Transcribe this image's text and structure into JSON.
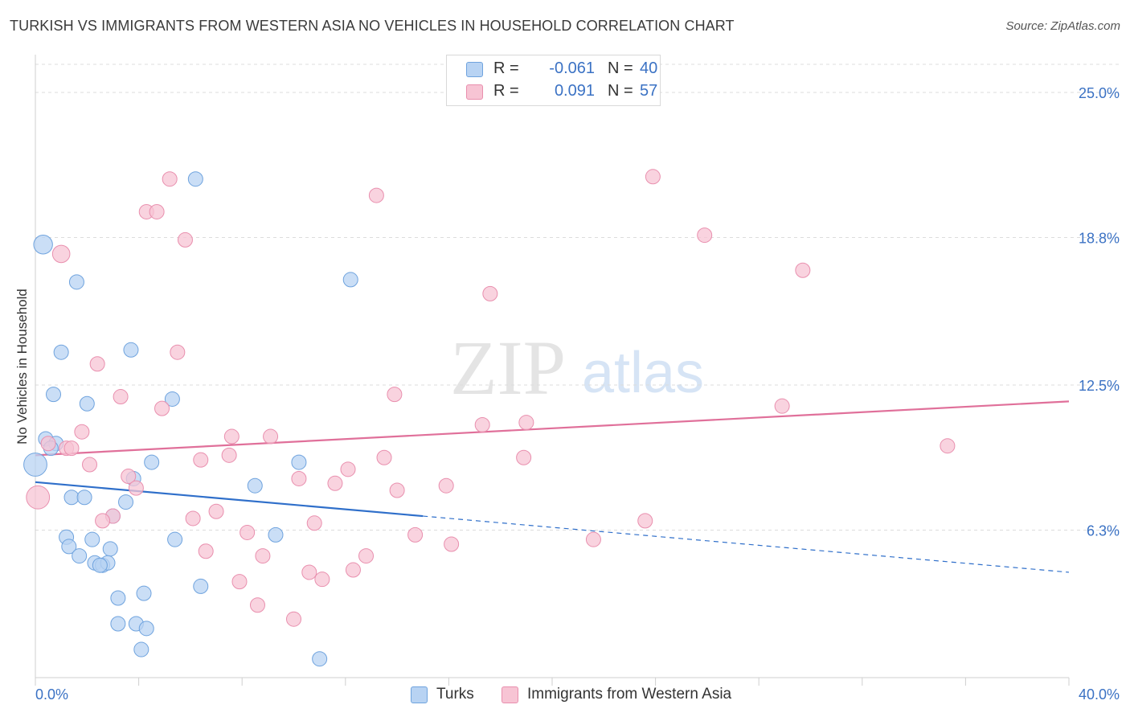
{
  "title": "TURKISH VS IMMIGRANTS FROM WESTERN ASIA NO VEHICLES IN HOUSEHOLD CORRELATION CHART",
  "source": "Source: ZipAtlas.com",
  "watermark": {
    "zip": "ZIP",
    "atlas": "atlas"
  },
  "colors": {
    "blue_fill": "#b8d3f3",
    "blue_stroke": "#6fa3de",
    "blue_line": "#2f6fca",
    "pink_fill": "#f7c4d4",
    "pink_stroke": "#e98fae",
    "pink_line": "#e0709a",
    "tick_text": "#3b72c4",
    "grid": "#dcdcdc"
  },
  "stats": [
    {
      "r_label": "R = ",
      "r_value": "-0.061",
      "n_label": "N = ",
      "n_value": "40",
      "color": "blue"
    },
    {
      "r_label": "R = ",
      "r_value": "0.091",
      "n_label": "N = ",
      "n_value": "57",
      "color": "pink"
    }
  ],
  "legend": [
    {
      "label": "Turks",
      "color": "blue"
    },
    {
      "label": "Immigrants from Western Asia",
      "color": "pink"
    }
  ],
  "chart_data": {
    "type": "scatter",
    "title": "TURKISH VS IMMIGRANTS FROM WESTERN ASIA NO VEHICLES IN HOUSEHOLD CORRELATION CHART",
    "xlabel": "",
    "ylabel": "No Vehicles in Household",
    "xlim": [
      0,
      40
    ],
    "ylim": [
      0,
      26.2
    ],
    "x_tick_labels": [
      "0.0%",
      "40.0%"
    ],
    "y_ticks": [
      6.3,
      12.5,
      18.8,
      25.0
    ],
    "y_tick_labels": [
      "6.3%",
      "12.5%",
      "18.8%",
      "25.0%"
    ],
    "grid": "horizontal dashed",
    "legend_position": "bottom-center",
    "series": [
      {
        "name": "Turks",
        "color": "blue",
        "trend": {
          "x": [
            0,
            15
          ],
          "y": [
            8.35,
            6.9
          ],
          "dashed_to": [
            40,
            4.5
          ]
        },
        "points": [
          {
            "x": 0.3,
            "y": 18.5,
            "s": 1.3
          },
          {
            "x": 1.6,
            "y": 16.9,
            "s": 1
          },
          {
            "x": 12.2,
            "y": 17.0,
            "s": 1
          },
          {
            "x": 6.2,
            "y": 21.3,
            "s": 1
          },
          {
            "x": 1.0,
            "y": 13.9,
            "s": 1
          },
          {
            "x": 3.7,
            "y": 14.0,
            "s": 1
          },
          {
            "x": 0.7,
            "y": 12.1,
            "s": 1
          },
          {
            "x": 2.0,
            "y": 11.7,
            "s": 1
          },
          {
            "x": 5.3,
            "y": 11.9,
            "s": 1
          },
          {
            "x": 0.4,
            "y": 10.2,
            "s": 1
          },
          {
            "x": 0.8,
            "y": 10.0,
            "s": 1
          },
          {
            "x": 0.6,
            "y": 9.8,
            "s": 1
          },
          {
            "x": 0.0,
            "y": 9.1,
            "s": 1.6
          },
          {
            "x": 4.5,
            "y": 9.2,
            "s": 1
          },
          {
            "x": 10.2,
            "y": 9.2,
            "s": 1
          },
          {
            "x": 3.8,
            "y": 8.5,
            "s": 1
          },
          {
            "x": 8.5,
            "y": 8.2,
            "s": 1
          },
          {
            "x": 1.4,
            "y": 7.7,
            "s": 1
          },
          {
            "x": 1.9,
            "y": 7.7,
            "s": 1
          },
          {
            "x": 3.5,
            "y": 7.5,
            "s": 1
          },
          {
            "x": 3.0,
            "y": 6.9,
            "s": 1
          },
          {
            "x": 1.2,
            "y": 6.0,
            "s": 1
          },
          {
            "x": 2.2,
            "y": 5.9,
            "s": 1
          },
          {
            "x": 5.4,
            "y": 5.9,
            "s": 1
          },
          {
            "x": 9.3,
            "y": 6.1,
            "s": 1
          },
          {
            "x": 1.3,
            "y": 5.6,
            "s": 1
          },
          {
            "x": 2.9,
            "y": 5.5,
            "s": 1
          },
          {
            "x": 1.7,
            "y": 5.2,
            "s": 1
          },
          {
            "x": 2.3,
            "y": 4.9,
            "s": 1
          },
          {
            "x": 2.6,
            "y": 4.8,
            "s": 1
          },
          {
            "x": 2.8,
            "y": 4.9,
            "s": 1
          },
          {
            "x": 6.4,
            "y": 3.9,
            "s": 1
          },
          {
            "x": 3.2,
            "y": 3.4,
            "s": 1
          },
          {
            "x": 4.2,
            "y": 3.6,
            "s": 1
          },
          {
            "x": 3.2,
            "y": 2.3,
            "s": 1
          },
          {
            "x": 3.9,
            "y": 2.3,
            "s": 1
          },
          {
            "x": 4.3,
            "y": 2.1,
            "s": 1
          },
          {
            "x": 4.1,
            "y": 1.2,
            "s": 1
          },
          {
            "x": 11.0,
            "y": 0.8,
            "s": 1
          },
          {
            "x": 2.5,
            "y": 4.8,
            "s": 1
          }
        ]
      },
      {
        "name": "Immigrants from Western Asia",
        "color": "pink",
        "trend": {
          "x": [
            0,
            40
          ],
          "y": [
            9.5,
            11.8
          ]
        },
        "points": [
          {
            "x": 5.2,
            "y": 21.3,
            "s": 1
          },
          {
            "x": 4.3,
            "y": 19.9,
            "s": 1
          },
          {
            "x": 4.7,
            "y": 19.9,
            "s": 1
          },
          {
            "x": 13.2,
            "y": 20.6,
            "s": 1
          },
          {
            "x": 23.9,
            "y": 21.4,
            "s": 1
          },
          {
            "x": 1.0,
            "y": 18.1,
            "s": 1.2
          },
          {
            "x": 5.8,
            "y": 18.7,
            "s": 1
          },
          {
            "x": 25.9,
            "y": 18.9,
            "s": 1
          },
          {
            "x": 29.7,
            "y": 17.4,
            "s": 1
          },
          {
            "x": 17.6,
            "y": 16.4,
            "s": 1
          },
          {
            "x": 5.5,
            "y": 13.9,
            "s": 1
          },
          {
            "x": 2.4,
            "y": 13.4,
            "s": 1
          },
          {
            "x": 3.3,
            "y": 12.0,
            "s": 1
          },
          {
            "x": 13.9,
            "y": 12.1,
            "s": 1
          },
          {
            "x": 4.9,
            "y": 11.5,
            "s": 1
          },
          {
            "x": 28.9,
            "y": 11.6,
            "s": 1
          },
          {
            "x": 17.3,
            "y": 10.8,
            "s": 1
          },
          {
            "x": 19.0,
            "y": 10.9,
            "s": 1
          },
          {
            "x": 1.8,
            "y": 10.5,
            "s": 1
          },
          {
            "x": 7.6,
            "y": 10.3,
            "s": 1
          },
          {
            "x": 9.1,
            "y": 10.3,
            "s": 1
          },
          {
            "x": 0.5,
            "y": 10.0,
            "s": 1
          },
          {
            "x": 1.2,
            "y": 9.8,
            "s": 1
          },
          {
            "x": 1.4,
            "y": 9.8,
            "s": 1
          },
          {
            "x": 7.5,
            "y": 9.5,
            "s": 1
          },
          {
            "x": 6.4,
            "y": 9.3,
            "s": 1
          },
          {
            "x": 13.5,
            "y": 9.4,
            "s": 1
          },
          {
            "x": 18.9,
            "y": 9.4,
            "s": 1
          },
          {
            "x": 35.3,
            "y": 9.9,
            "s": 1
          },
          {
            "x": 2.1,
            "y": 9.1,
            "s": 1
          },
          {
            "x": 12.1,
            "y": 8.9,
            "s": 1
          },
          {
            "x": 3.6,
            "y": 8.6,
            "s": 1
          },
          {
            "x": 10.2,
            "y": 8.5,
            "s": 1
          },
          {
            "x": 11.6,
            "y": 8.3,
            "s": 1
          },
          {
            "x": 15.9,
            "y": 8.2,
            "s": 1
          },
          {
            "x": 3.9,
            "y": 8.1,
            "s": 1
          },
          {
            "x": 14.0,
            "y": 8.0,
            "s": 1
          },
          {
            "x": 0.1,
            "y": 7.7,
            "s": 1.6
          },
          {
            "x": 7.0,
            "y": 7.1,
            "s": 1
          },
          {
            "x": 3.0,
            "y": 6.9,
            "s": 1
          },
          {
            "x": 2.6,
            "y": 6.7,
            "s": 1
          },
          {
            "x": 6.1,
            "y": 6.8,
            "s": 1
          },
          {
            "x": 10.8,
            "y": 6.6,
            "s": 1
          },
          {
            "x": 23.6,
            "y": 6.7,
            "s": 1
          },
          {
            "x": 8.2,
            "y": 6.2,
            "s": 1
          },
          {
            "x": 14.7,
            "y": 6.1,
            "s": 1
          },
          {
            "x": 21.6,
            "y": 5.9,
            "s": 1
          },
          {
            "x": 16.1,
            "y": 5.7,
            "s": 1
          },
          {
            "x": 6.6,
            "y": 5.4,
            "s": 1
          },
          {
            "x": 8.8,
            "y": 5.2,
            "s": 1
          },
          {
            "x": 12.8,
            "y": 5.2,
            "s": 1
          },
          {
            "x": 12.3,
            "y": 4.6,
            "s": 1
          },
          {
            "x": 10.6,
            "y": 4.5,
            "s": 1
          },
          {
            "x": 11.1,
            "y": 4.2,
            "s": 1
          },
          {
            "x": 7.9,
            "y": 4.1,
            "s": 1
          },
          {
            "x": 8.6,
            "y": 3.1,
            "s": 1
          },
          {
            "x": 10.0,
            "y": 2.5,
            "s": 1
          }
        ]
      }
    ]
  }
}
